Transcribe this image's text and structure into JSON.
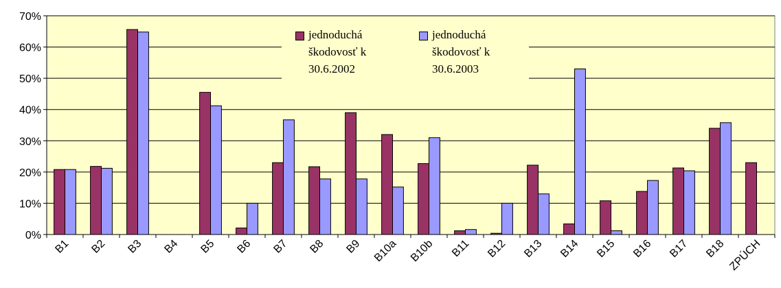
{
  "chart_data": {
    "type": "bar",
    "categories": [
      "B1",
      "B2",
      "B3",
      "B4",
      "B5",
      "B6",
      "B7",
      "B8",
      "B9",
      "B10a",
      "B10b",
      "B11",
      "B12",
      "B13",
      "B14",
      "B15",
      "B16",
      "B17",
      "B18",
      "ZPÚCH"
    ],
    "series": [
      {
        "name": "jednoduchá škodovosť k 30.6.2002",
        "color": "#993366",
        "values": [
          20.8,
          21.8,
          65.6,
          0,
          45.5,
          2.1,
          23.0,
          21.7,
          39.0,
          32.0,
          22.7,
          1.2,
          0.4,
          22.2,
          3.4,
          10.8,
          13.8,
          21.3,
          34.0,
          23.0
        ]
      },
      {
        "name": "jednoduchá škodovosť k 30.6.2003",
        "color": "#9999ff",
        "values": [
          20.8,
          21.2,
          64.8,
          0,
          41.2,
          10.0,
          36.7,
          17.8,
          17.8,
          15.2,
          31.0,
          1.6,
          10.0,
          13.0,
          53.0,
          1.2,
          17.3,
          20.4,
          35.8,
          null
        ]
      }
    ],
    "ylim": [
      0,
      70
    ],
    "yticks": [
      {
        "value": 0,
        "label": "0%"
      },
      {
        "value": 10,
        "label": "10%"
      },
      {
        "value": 20,
        "label": "20%"
      },
      {
        "value": 30,
        "label": "30%"
      },
      {
        "value": 40,
        "label": "40%"
      },
      {
        "value": 50,
        "label": "50%"
      },
      {
        "value": 60,
        "label": "60%"
      },
      {
        "value": 70,
        "label": "70%"
      }
    ],
    "grid": true,
    "background": "#ffffcc"
  }
}
